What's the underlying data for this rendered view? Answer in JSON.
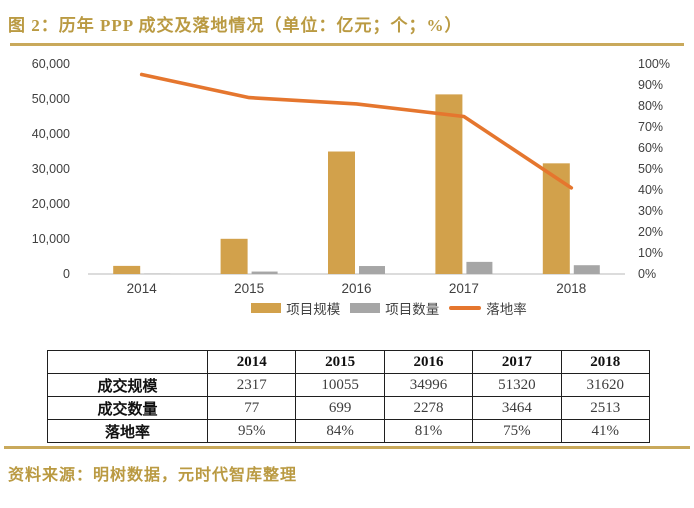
{
  "header": {
    "title": "图 2：历年 PPP 成交及落地情况（单位：亿元；个；%）"
  },
  "colors": {
    "gold_text": "#BA9A42",
    "gold_rule": "#C9A95B",
    "bar_scale": "#D2A14B",
    "bar_count": "#A6A6A6",
    "line_rate": "#E5762E",
    "axis_text": "#404040",
    "axis_line": "#C6C6C6",
    "table_border": "#1F1F1F"
  },
  "chart_data": {
    "type": "bar+line",
    "title": "历年 PPP 成交及落地情况",
    "categories": [
      "2014",
      "2015",
      "2016",
      "2017",
      "2018"
    ],
    "series": [
      {
        "name": "项目规模",
        "type": "bar",
        "axis": "left",
        "values": [
          2317,
          10055,
          34996,
          51320,
          31620
        ]
      },
      {
        "name": "项目数量",
        "type": "bar",
        "axis": "left",
        "values": [
          77,
          699,
          2278,
          3464,
          2513
        ]
      },
      {
        "name": "落地率",
        "type": "line",
        "axis": "right",
        "values": [
          95,
          84,
          81,
          75,
          41
        ]
      }
    ],
    "left_axis": {
      "min": 0,
      "max": 60000,
      "step": 10000,
      "tick_labels": [
        "0",
        "10,000",
        "20,000",
        "30,000",
        "40,000",
        "50,000",
        "60,000"
      ]
    },
    "right_axis": {
      "min": 0,
      "max": 100,
      "step": 10,
      "tick_labels": [
        "0%",
        "10%",
        "20%",
        "30%",
        "40%",
        "50%",
        "60%",
        "70%",
        "80%",
        "90%",
        "100%"
      ]
    },
    "legend_position": "bottom",
    "grid": false
  },
  "table": {
    "col_headers": [
      "",
      "2014",
      "2015",
      "2016",
      "2017",
      "2018"
    ],
    "rows": [
      {
        "label": "成交规模",
        "values": [
          "2317",
          "10055",
          "34996",
          "51320",
          "31620"
        ]
      },
      {
        "label": "成交数量",
        "values": [
          "77",
          "699",
          "2278",
          "3464",
          "2513"
        ]
      },
      {
        "label": "落地率",
        "values": [
          "95%",
          "84%",
          "81%",
          "75%",
          "41%"
        ]
      }
    ]
  },
  "footer": {
    "source": "资料来源：明树数据，元时代智库整理"
  }
}
